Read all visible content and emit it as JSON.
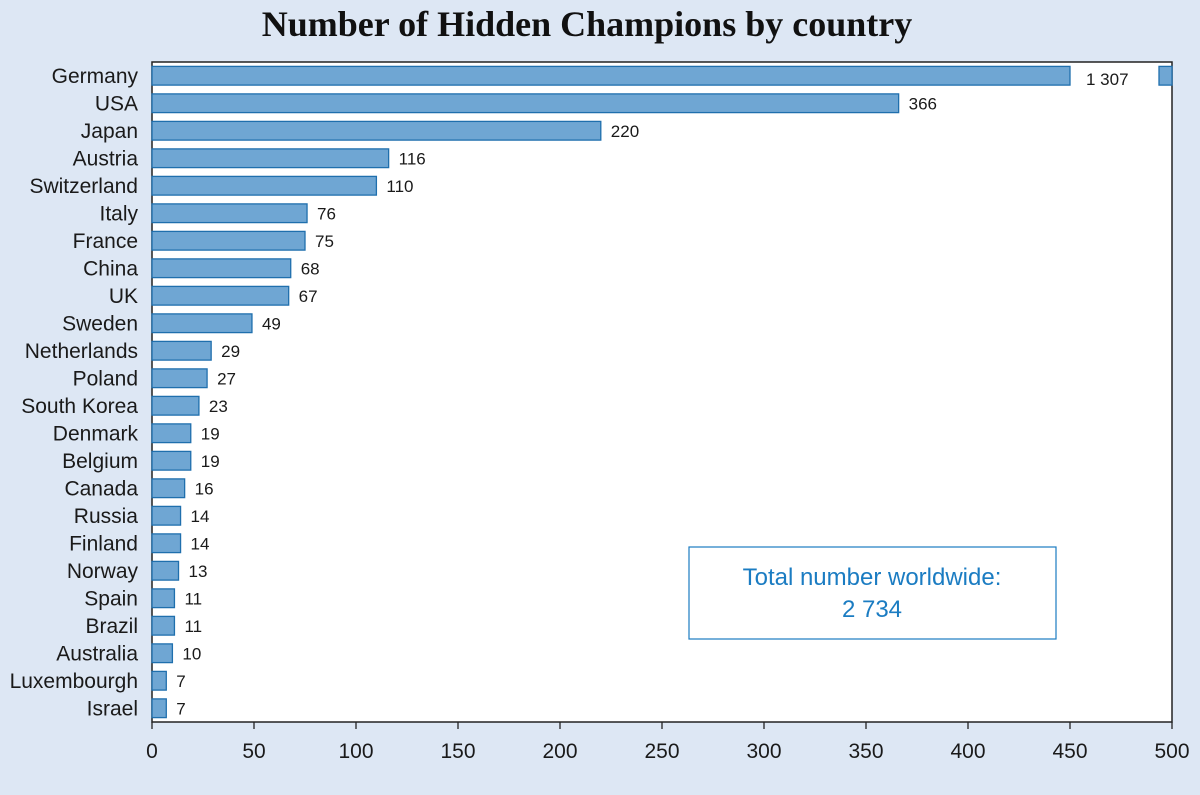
{
  "chart_data": {
    "type": "bar",
    "orientation": "horizontal",
    "title": "Number of Hidden Champions by country",
    "xlabel": "",
    "ylabel": "",
    "xlim": [
      0,
      500
    ],
    "xticks": [
      0,
      50,
      100,
      150,
      200,
      250,
      300,
      350,
      400,
      450,
      500
    ],
    "grid": false,
    "axis_break": true,
    "bar_color": "#6fa6d3",
    "bar_edge_color": "#1f6fad",
    "categories": [
      "Germany",
      "USA",
      "Japan",
      "Austria",
      "Switzerland",
      "Italy",
      "France",
      "China",
      "UK",
      "Sweden",
      "Netherlands",
      "Poland",
      "South Korea",
      "Denmark",
      "Belgium",
      "Canada",
      "Russia",
      "Finland",
      "Norway",
      "Spain",
      "Brazil",
      "Australia",
      "Luxembourgh",
      "Israel"
    ],
    "values": [
      1307,
      366,
      220,
      116,
      110,
      76,
      75,
      68,
      67,
      49,
      29,
      27,
      23,
      19,
      19,
      16,
      14,
      14,
      13,
      11,
      11,
      10,
      7,
      7
    ],
    "value_labels": [
      "1 307",
      "366",
      "220",
      "116",
      "110",
      "76",
      "75",
      "68",
      "67",
      "49",
      "29",
      "27",
      "23",
      "19",
      "19",
      "16",
      "14",
      "14",
      "13",
      "11",
      "11",
      "10",
      "7",
      "7"
    ],
    "annotations": [
      {
        "label": "Total number worldwide:",
        "value": "2 734"
      }
    ]
  },
  "colors": {
    "background": "#dde7f4",
    "plot_background": "#ffffff",
    "annotation_text": "#1b7cc2"
  }
}
